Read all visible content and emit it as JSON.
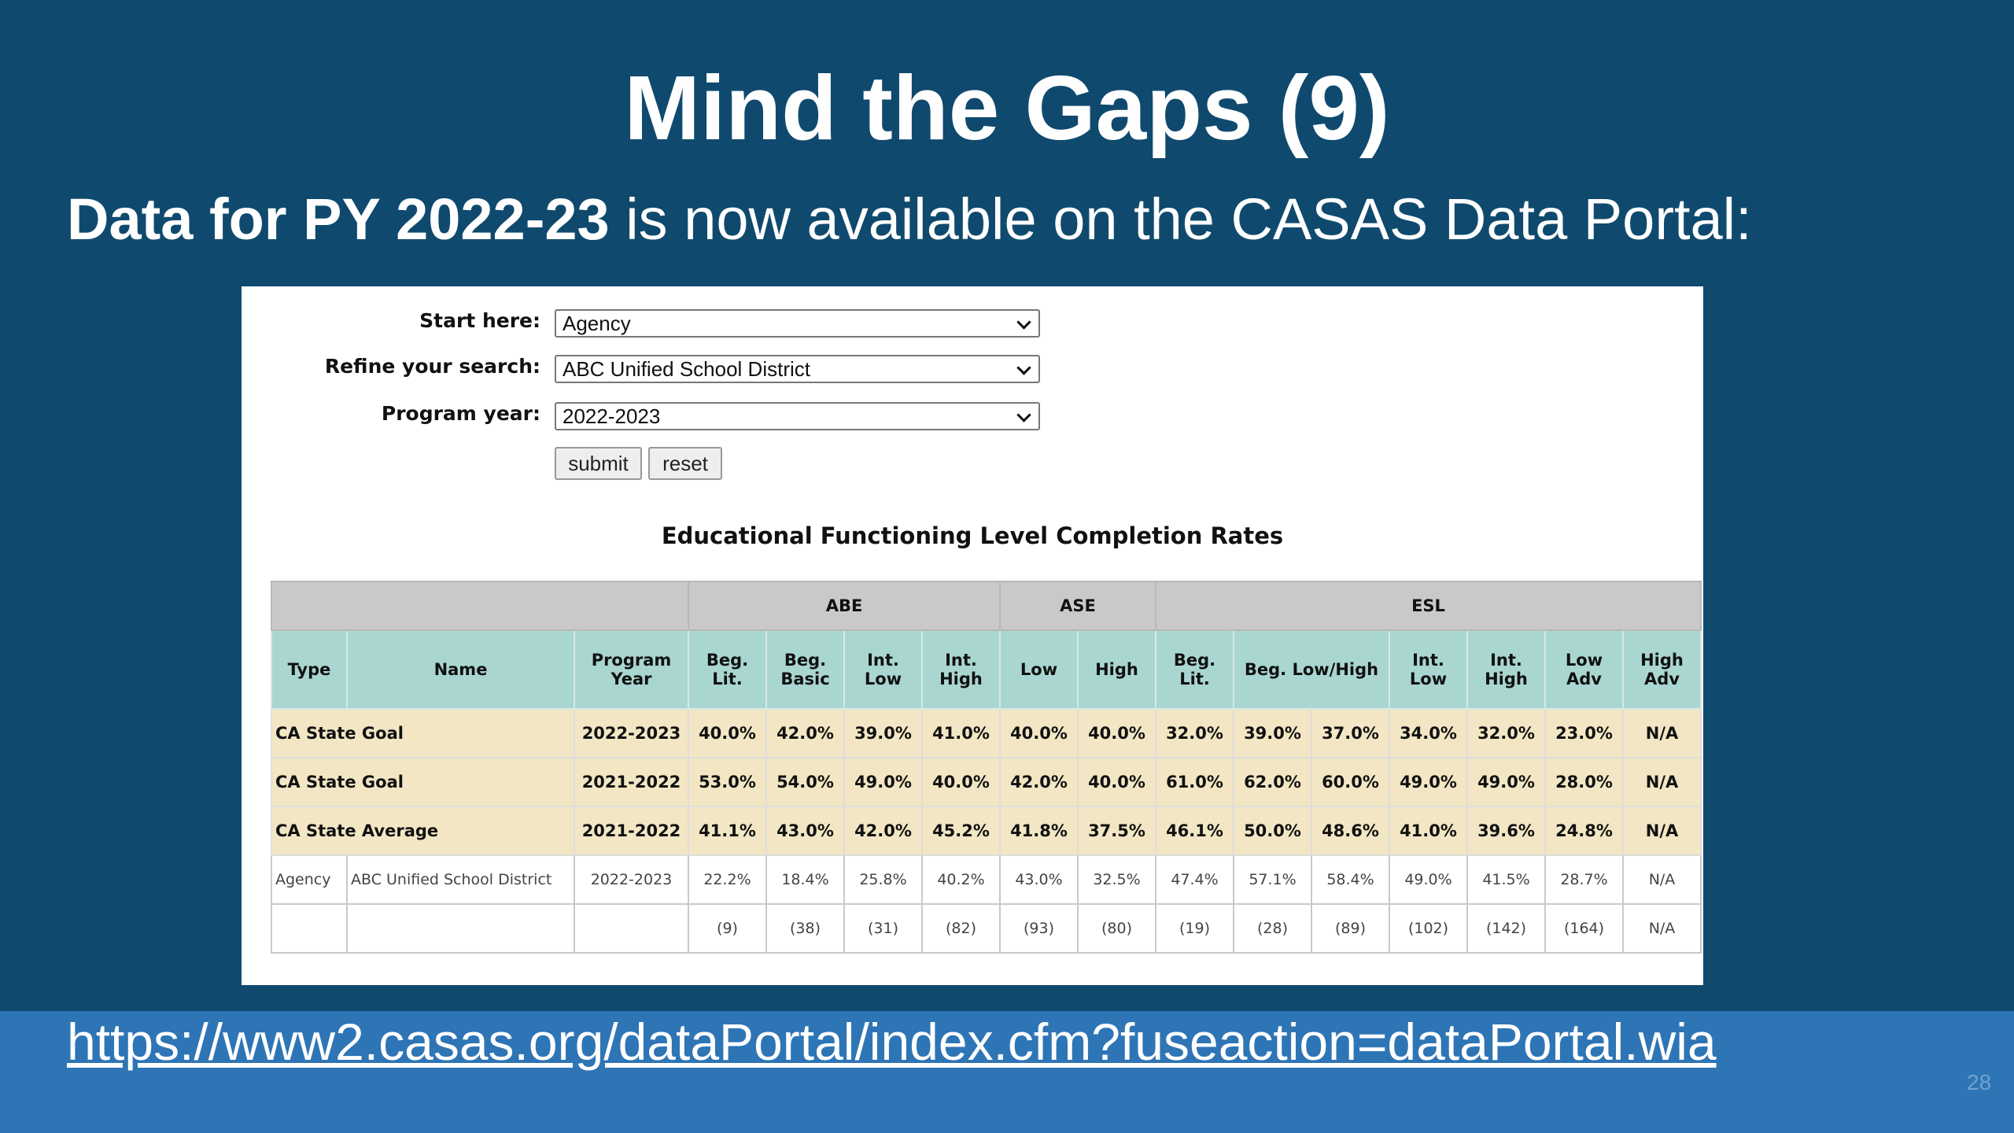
{
  "title": "Mind the Gaps (9)",
  "subtitle": {
    "bold": "Data for PY 2022-23",
    "rest": "is now available on the CASAS Data Portal:"
  },
  "form": {
    "fields": [
      {
        "label": "Start here:",
        "value": "Agency"
      },
      {
        "label": "Refine your search:",
        "value": "ABC Unified School District"
      },
      {
        "label": "Program year:",
        "value": "2022-2023"
      }
    ],
    "buttons": [
      "submit",
      "reset"
    ]
  },
  "table": {
    "title": "Educational Functioning Level Completion Rates",
    "groups": [
      "ABE",
      "ASE",
      "ESL"
    ],
    "columns": [
      "Type",
      "Name",
      "Program Year",
      "Beg. Lit.",
      "Beg. Basic",
      "Int. Low",
      "Int. High",
      "Low",
      "High",
      "Beg. Lit.",
      "Beg. Low/High",
      "Int. Low",
      "Int. High",
      "Low Adv",
      "High Adv"
    ],
    "rows": [
      [
        "CA State Goal",
        "2022-2023",
        "40.0%",
        "42.0%",
        "39.0%",
        "41.0%",
        "40.0%",
        "40.0%",
        "32.0%",
        "39.0%",
        "37.0%",
        "34.0%",
        "32.0%",
        "23.0%",
        "N/A"
      ],
      [
        "CA State Goal",
        "2021-2022",
        "53.0%",
        "54.0%",
        "49.0%",
        "40.0%",
        "42.0%",
        "40.0%",
        "61.0%",
        "62.0%",
        "60.0%",
        "49.0%",
        "49.0%",
        "28.0%",
        "N/A"
      ],
      [
        "CA State Average",
        "2021-2022",
        "41.1%",
        "43.0%",
        "42.0%",
        "45.2%",
        "41.8%",
        "37.5%",
        "46.1%",
        "50.0%",
        "48.6%",
        "41.0%",
        "39.6%",
        "24.8%",
        "N/A"
      ],
      [
        "Agency",
        "ABC Unified School District",
        "2022-2023",
        "22.2%",
        "18.4%",
        "25.8%",
        "40.2%",
        "43.0%",
        "32.5%",
        "47.4%",
        "57.1%",
        "58.4%",
        "49.0%",
        "41.5%",
        "28.7%",
        "N/A"
      ]
    ],
    "counts": [
      "(9)",
      "(38)",
      "(31)",
      "(82)",
      "(93)",
      "(80)",
      "(19)",
      "(28)",
      "(89)",
      "(102)",
      "(142)",
      "(164)",
      "N/A"
    ]
  },
  "link": "https://www2.casas.org/dataPortal/index.cfm?fuseaction=dataPortal.wia",
  "page_number": "28"
}
